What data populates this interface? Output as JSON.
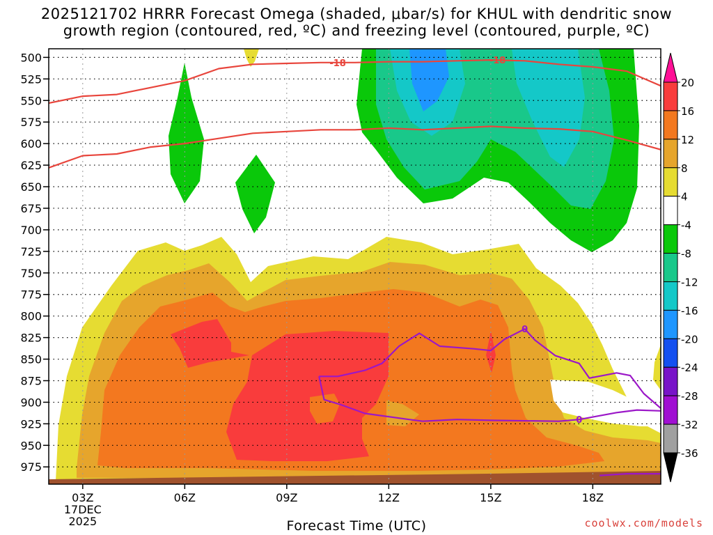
{
  "chart_data": {
    "type": "heatmap",
    "title": "2025121702 HRRR Forecast Omega (shaded, μbar/s) for KHUL with dendritic snow",
    "subtitle": "growth region (contoured, red, ºC) and freezing level (contoured, purple, ºC)",
    "xlabel": "Forecast Time (UTC)",
    "ylabel": "",
    "x_ticks": [
      "03Z",
      "06Z",
      "09Z",
      "12Z",
      "15Z",
      "18Z"
    ],
    "x_tick_values": [
      3,
      6,
      9,
      12,
      15,
      18
    ],
    "x_sublabels": [
      "17DEC",
      "2025"
    ],
    "xlim": [
      2,
      20
    ],
    "y_ticks": [
      500,
      525,
      550,
      575,
      600,
      625,
      650,
      675,
      700,
      725,
      750,
      775,
      800,
      825,
      850,
      875,
      900,
      925,
      950,
      975
    ],
    "ylim": [
      490,
      995
    ],
    "grid": true,
    "colorbar": {
      "levels": [
        20,
        16,
        12,
        8,
        4,
        -4,
        -8,
        -12,
        -16,
        -20,
        -24,
        -28,
        -32,
        -36
      ],
      "colors": [
        "#ff0f96",
        "#f93c3c",
        "#f3781f",
        "#e6a52c",
        "#e6dc32",
        "#ffffff",
        "#0ac80a",
        "#19c88a",
        "#14c8c8",
        "#1e96ff",
        "#1450f0",
        "#7814c8",
        "#a00fd2",
        "#a0a0a0",
        "#000000"
      ]
    },
    "contours": [
      {
        "kind": "dendritic",
        "value": -18,
        "label": "-18",
        "color": "#e8453c",
        "points": [
          [
            2,
            553
          ],
          [
            3,
            545
          ],
          [
            4,
            543
          ],
          [
            5,
            535
          ],
          [
            6,
            527
          ],
          [
            7,
            513
          ],
          [
            8,
            508
          ],
          [
            9,
            507
          ],
          [
            10,
            506
          ],
          [
            11,
            506
          ],
          [
            12,
            505
          ],
          [
            13,
            505
          ],
          [
            14,
            504
          ],
          [
            15,
            503
          ],
          [
            16,
            504
          ],
          [
            17,
            508
          ],
          [
            18,
            511
          ],
          [
            19,
            516
          ],
          [
            20,
            533
          ]
        ]
      },
      {
        "kind": "dendritic",
        "value": -12,
        "label": "",
        "color": "#e8453c",
        "points": [
          [
            2,
            628
          ],
          [
            3,
            614
          ],
          [
            4,
            612
          ],
          [
            5,
            604
          ],
          [
            6,
            600
          ],
          [
            7,
            594
          ],
          [
            8,
            588
          ],
          [
            9,
            586
          ],
          [
            10,
            584
          ],
          [
            11,
            584
          ],
          [
            12,
            582
          ],
          [
            13,
            584
          ],
          [
            14,
            582
          ],
          [
            15,
            580
          ],
          [
            16,
            582
          ],
          [
            17,
            583
          ],
          [
            18,
            586
          ],
          [
            19,
            596
          ],
          [
            20,
            607
          ]
        ]
      },
      {
        "kind": "freezing",
        "value": 0,
        "label": "0",
        "color": "#9b17c8",
        "points": [
          [
            9.95,
            870
          ],
          [
            10.5,
            870
          ],
          [
            11.3,
            863
          ],
          [
            11.8,
            855
          ],
          [
            12.3,
            835
          ],
          [
            12.9,
            820
          ],
          [
            13.5,
            835
          ],
          [
            14.5,
            838
          ],
          [
            15,
            840
          ],
          [
            15.4,
            827
          ],
          [
            16,
            815
          ],
          [
            16.3,
            828
          ],
          [
            16.9,
            846
          ],
          [
            17.6,
            855
          ],
          [
            17.9,
            872
          ],
          [
            18.7,
            866
          ],
          [
            19.1,
            869
          ],
          [
            19.5,
            890
          ],
          [
            20,
            907
          ]
        ]
      },
      {
        "kind": "freezing",
        "value": 0,
        "label": "0",
        "color": "#9b17c8",
        "points": [
          [
            9.95,
            870
          ],
          [
            10.1,
            897
          ],
          [
            10.6,
            903
          ],
          [
            11.3,
            913
          ],
          [
            12.6,
            920
          ],
          [
            13,
            922
          ],
          [
            14,
            920
          ],
          [
            15,
            921
          ],
          [
            17,
            922
          ],
          [
            17.6,
            920
          ],
          [
            18.7,
            912
          ],
          [
            19.3,
            909
          ],
          [
            20,
            910
          ]
        ]
      },
      {
        "kind": "freezing",
        "value": 0,
        "label": "",
        "color": "#9b17c8",
        "points": [
          [
            18.2,
            985
          ],
          [
            19,
            983
          ],
          [
            20,
            983
          ]
        ]
      }
    ]
  },
  "footer": {
    "credit": "coolwx.com/models"
  }
}
